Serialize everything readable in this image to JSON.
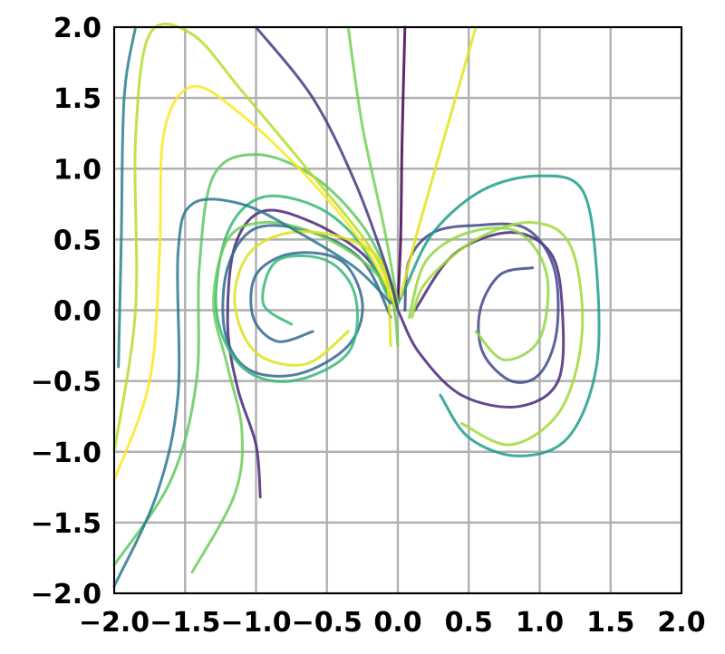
{
  "chart_data": {
    "type": "line",
    "title": "",
    "xlabel": "",
    "ylabel": "",
    "xlim": [
      -2.0,
      2.0
    ],
    "ylim": [
      -2.0,
      2.0
    ],
    "grid": true,
    "legend": "none",
    "colormap": "viridis",
    "xticks": [
      {
        "value": -2.0,
        "label": "−2.0"
      },
      {
        "value": -1.5,
        "label": "−1.5"
      },
      {
        "value": -1.0,
        "label": "−1.0"
      },
      {
        "value": -0.5,
        "label": "−0.5"
      },
      {
        "value": 0.0,
        "label": "0.0"
      },
      {
        "value": 0.5,
        "label": "0.5"
      },
      {
        "value": 1.0,
        "label": "1.0"
      },
      {
        "value": 1.5,
        "label": "1.5"
      },
      {
        "value": 2.0,
        "label": "2.0"
      }
    ],
    "yticks": [
      {
        "value": 2.0,
        "label": "2.0"
      },
      {
        "value": 1.5,
        "label": "1.5"
      },
      {
        "value": 1.0,
        "label": "1.0"
      },
      {
        "value": 0.5,
        "label": "0.5"
      },
      {
        "value": 0.0,
        "label": "0.0"
      },
      {
        "value": -0.5,
        "label": "−0.5"
      },
      {
        "value": -1.0,
        "label": "−1.0"
      },
      {
        "value": -1.5,
        "label": "−1.5"
      },
      {
        "value": -2.0,
        "label": "−2.0"
      }
    ],
    "series": [
      {
        "color": "#440154",
        "points": [
          [
            0.05,
            2.0
          ],
          [
            0.03,
            1.2
          ],
          [
            0.02,
            0.5
          ],
          [
            0.0,
            0.05
          ]
        ]
      },
      {
        "color": "#482878",
        "points": [
          [
            -0.97,
            -1.32
          ],
          [
            -1.0,
            -0.95
          ],
          [
            -1.13,
            -0.55
          ],
          [
            -1.2,
            -0.1
          ],
          [
            -1.15,
            0.45
          ],
          [
            -0.95,
            0.7
          ],
          [
            -0.6,
            0.62
          ],
          [
            -0.25,
            0.4
          ],
          [
            -0.08,
            0.15
          ],
          [
            0.0,
            0.0
          ],
          [
            0.15,
            -0.3
          ],
          [
            0.45,
            -0.6
          ],
          [
            0.85,
            -0.68
          ],
          [
            1.13,
            -0.5
          ],
          [
            1.16,
            0.0
          ],
          [
            1.08,
            0.4
          ],
          [
            0.8,
            0.55
          ],
          [
            0.4,
            0.4
          ],
          [
            0.12,
            0.0
          ]
        ]
      },
      {
        "color": "#3e4989",
        "points": [
          [
            0.05,
            0.0
          ],
          [
            0.08,
            0.35
          ],
          [
            0.25,
            0.55
          ],
          [
            0.55,
            0.6
          ],
          [
            0.9,
            0.58
          ],
          [
            1.1,
            0.3
          ],
          [
            1.12,
            -0.15
          ],
          [
            1.0,
            -0.45
          ],
          [
            0.8,
            -0.5
          ],
          [
            0.6,
            -0.3
          ],
          [
            0.58,
            0.0
          ],
          [
            0.72,
            0.25
          ],
          [
            0.95,
            0.3
          ]
        ]
      },
      {
        "color": "#31688e",
        "points": [
          [
            -0.05,
            -0.05
          ],
          [
            -0.25,
            0.35
          ],
          [
            -0.6,
            0.55
          ],
          [
            -1.0,
            0.58
          ],
          [
            -1.2,
            0.3
          ],
          [
            -1.22,
            -0.15
          ],
          [
            -1.05,
            -0.42
          ],
          [
            -0.7,
            -0.45
          ],
          [
            -0.35,
            -0.25
          ],
          [
            -0.25,
            0.05
          ],
          [
            -0.4,
            0.35
          ],
          [
            -0.75,
            0.4
          ],
          [
            -1.0,
            0.25
          ],
          [
            -1.02,
            -0.05
          ],
          [
            -0.85,
            -0.22
          ],
          [
            -0.6,
            -0.15
          ]
        ]
      },
      {
        "color": "#26828e",
        "points": [
          [
            -1.97,
            -0.4
          ],
          [
            -1.95,
            0.5
          ],
          [
            -1.93,
            1.5
          ],
          [
            -1.85,
            2.0
          ]
        ]
      },
      {
        "color": "#1f9e89",
        "points": [
          [
            0.3,
            -0.6
          ],
          [
            0.5,
            -0.9
          ],
          [
            0.85,
            -1.03
          ],
          [
            1.2,
            -0.9
          ],
          [
            1.4,
            -0.4
          ],
          [
            1.4,
            0.3
          ],
          [
            1.3,
            0.85
          ],
          [
            1.0,
            0.95
          ],
          [
            0.6,
            0.85
          ],
          [
            0.25,
            0.55
          ],
          [
            0.05,
            0.15
          ],
          [
            -0.02,
            0.0
          ]
        ]
      },
      {
        "color": "#35b779",
        "points": [
          [
            -0.05,
            0.05
          ],
          [
            -0.25,
            0.45
          ],
          [
            -0.55,
            0.72
          ],
          [
            -0.95,
            0.8
          ],
          [
            -1.2,
            0.55
          ],
          [
            -1.28,
            0.0
          ],
          [
            -1.1,
            -0.4
          ],
          [
            -0.75,
            -0.5
          ],
          [
            -0.35,
            -0.3
          ],
          [
            -0.3,
            0.1
          ],
          [
            -0.5,
            0.35
          ],
          [
            -0.85,
            0.35
          ],
          [
            -0.95,
            0.05
          ],
          [
            -0.75,
            -0.1
          ]
        ]
      },
      {
        "color": "#6ece58",
        "points": [
          [
            -1.45,
            -1.85
          ],
          [
            -1.15,
            -1.3
          ],
          [
            -1.1,
            -0.85
          ],
          [
            -1.2,
            -0.4
          ],
          [
            -1.3,
            0.05
          ],
          [
            -1.2,
            0.5
          ],
          [
            -0.95,
            0.62
          ],
          [
            -0.6,
            0.55
          ],
          [
            -0.25,
            0.35
          ],
          [
            -0.05,
            0.1
          ],
          [
            0.0,
            -0.25
          ]
        ]
      },
      {
        "color": "#5ec962",
        "points": [
          [
            -2.0,
            -1.8
          ],
          [
            -1.6,
            -1.2
          ],
          [
            -1.42,
            -0.5
          ],
          [
            -1.4,
            0.3
          ],
          [
            -1.3,
            0.95
          ],
          [
            -1.0,
            1.1
          ],
          [
            -0.6,
            0.95
          ],
          [
            -0.25,
            0.6
          ],
          [
            -0.05,
            0.2
          ],
          [
            0.0,
            0.0
          ]
        ]
      },
      {
        "color": "#b5de2b",
        "points": [
          [
            -2.0,
            -1.0
          ],
          [
            -1.85,
            0.0
          ],
          [
            -1.85,
            1.2
          ],
          [
            -1.75,
            1.95
          ],
          [
            -1.45,
            1.95
          ],
          [
            -1.1,
            1.55
          ],
          [
            -0.6,
            0.95
          ],
          [
            -0.2,
            0.45
          ],
          [
            0.0,
            0.05
          ]
        ]
      },
      {
        "color": "#fde725",
        "points": [
          [
            -2.0,
            -1.2
          ],
          [
            -1.75,
            -0.5
          ],
          [
            -1.68,
            0.4
          ],
          [
            -1.65,
            1.25
          ],
          [
            -1.45,
            1.58
          ],
          [
            -1.1,
            1.38
          ],
          [
            -0.6,
            0.9
          ],
          [
            -0.2,
            0.4
          ],
          [
            0.0,
            0.0
          ]
        ]
      },
      {
        "color": "#e5e419",
        "points": [
          [
            0.55,
            2.0
          ],
          [
            0.35,
            1.3
          ],
          [
            0.15,
            0.6
          ],
          [
            0.02,
            0.1
          ]
        ]
      },
      {
        "color": "#dce319",
        "points": [
          [
            -0.05,
            -0.25
          ],
          [
            -0.1,
            0.3
          ],
          [
            -0.35,
            0.5
          ],
          [
            -0.75,
            0.55
          ],
          [
            -1.05,
            0.4
          ],
          [
            -1.15,
            0.05
          ],
          [
            -1.0,
            -0.3
          ],
          [
            -0.65,
            -0.38
          ],
          [
            -0.35,
            -0.15
          ]
        ]
      },
      {
        "color": "#a0da39",
        "points": [
          [
            0.45,
            -0.8
          ],
          [
            0.8,
            -0.95
          ],
          [
            1.15,
            -0.7
          ],
          [
            1.3,
            -0.15
          ],
          [
            1.22,
            0.45
          ],
          [
            0.95,
            0.62
          ],
          [
            0.55,
            0.5
          ],
          [
            0.2,
            0.2
          ],
          [
            0.1,
            -0.05
          ]
        ]
      },
      {
        "color": "#73d056",
        "points": [
          [
            -0.35,
            2.0
          ],
          [
            -0.25,
            1.3
          ],
          [
            -0.1,
            0.6
          ],
          [
            0.0,
            0.05
          ]
        ]
      },
      {
        "color": "#8fd744",
        "points": [
          [
            0.08,
            -0.05
          ],
          [
            0.2,
            0.35
          ],
          [
            0.5,
            0.55
          ],
          [
            0.85,
            0.55
          ],
          [
            1.05,
            0.25
          ],
          [
            1.0,
            -0.2
          ],
          [
            0.75,
            -0.35
          ],
          [
            0.55,
            -0.15
          ]
        ]
      },
      {
        "color": "#2a788e",
        "points": [
          [
            -2.0,
            -1.95
          ],
          [
            -1.7,
            -1.3
          ],
          [
            -1.55,
            -0.6
          ],
          [
            -1.55,
            0.4
          ],
          [
            -1.45,
            0.75
          ],
          [
            -1.1,
            0.75
          ],
          [
            -0.7,
            0.55
          ],
          [
            -0.3,
            0.3
          ],
          [
            -0.05,
            0.05
          ]
        ]
      },
      {
        "color": "#443983",
        "points": [
          [
            -1.0,
            2.0
          ],
          [
            -0.6,
            1.5
          ],
          [
            -0.3,
            0.9
          ],
          [
            -0.08,
            0.3
          ],
          [
            0.0,
            0.0
          ]
        ]
      }
    ]
  }
}
